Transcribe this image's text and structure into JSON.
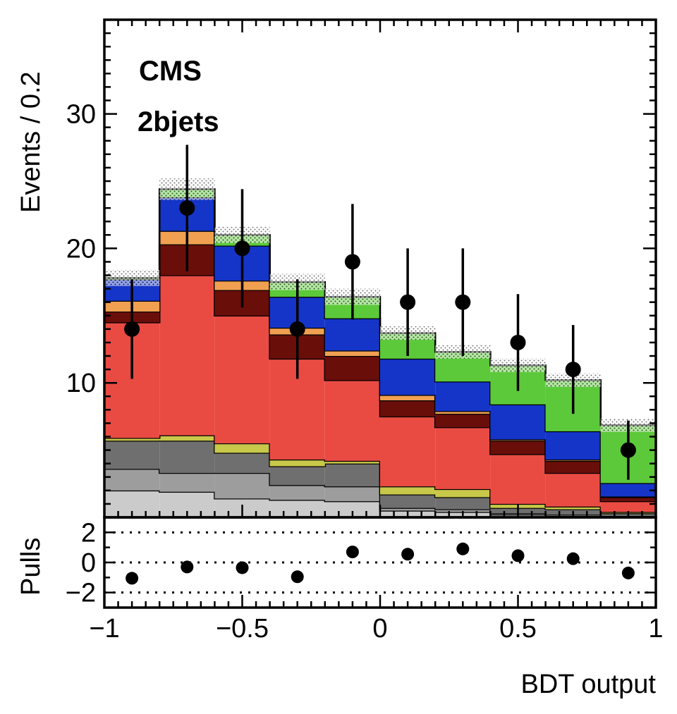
{
  "chart_data": [
    {
      "type": "bar",
      "subtype": "stacked-step-histogram",
      "panel": "main",
      "annotations": [
        "CMS",
        "2bjets"
      ],
      "ylabel": "Events / 0.2",
      "xlim": [
        -1,
        1
      ],
      "ylim": [
        0,
        37
      ],
      "bin_edges": [
        -1,
        -0.8,
        -0.6,
        -0.4,
        -0.2,
        0,
        0.2,
        0.4,
        0.6,
        0.8,
        1
      ],
      "y_ticks": [
        "10",
        "20",
        "30"
      ],
      "y_tick_values": [
        10,
        20,
        30
      ],
      "stack": [
        {
          "color": "#cbcbcb",
          "values": [
            2.0,
            1.9,
            1.4,
            1.3,
            1.2,
            0.5,
            0.4,
            0.2,
            0.1,
            0.05
          ]
        },
        {
          "color": "#9d9d9d",
          "values": [
            1.6,
            1.4,
            1.9,
            1.1,
            1.1,
            0.2,
            0.2,
            0.1,
            0.1,
            0.05
          ]
        },
        {
          "color": "#6f6f6f",
          "values": [
            2.1,
            2.4,
            1.5,
            1.4,
            1.7,
            1.0,
            0.9,
            0.4,
            0.4,
            0.2
          ]
        },
        {
          "color": "#c8c84a",
          "values": [
            0.2,
            0.4,
            0.7,
            0.5,
            0.2,
            0.6,
            0.6,
            0.3,
            0.2,
            0.1
          ]
        },
        {
          "color": "#e94b43",
          "values": [
            8.6,
            11.9,
            9.5,
            7.5,
            6.0,
            5.2,
            4.6,
            3.7,
            2.5,
            0.8
          ]
        },
        {
          "color": "#6a0e0a",
          "values": [
            0.8,
            2.3,
            1.9,
            1.8,
            1.8,
            1.2,
            1.0,
            1.0,
            0.9,
            0.3
          ]
        },
        {
          "color": "#f0a050",
          "values": [
            0.8,
            1.0,
            0.7,
            0.5,
            0.4,
            0.4,
            0.2,
            0.1,
            0.1,
            0.05
          ]
        },
        {
          "color": "#1535c9",
          "values": [
            1.6,
            2.5,
            2.6,
            2.3,
            2.4,
            2.7,
            2.2,
            2.6,
            2.1,
            1.0
          ]
        },
        {
          "color": "#5cc93a",
          "values": [
            0.1,
            0.6,
            0.8,
            1.1,
            1.6,
            1.9,
            2.2,
            2.9,
            3.8,
            4.3
          ]
        }
      ],
      "total_uncertainty": [
        0.6,
        0.8,
        0.6,
        0.6,
        0.6,
        0.5,
        0.5,
        0.5,
        0.5,
        0.5
      ],
      "data_points": {
        "x": [
          -0.9,
          -0.7,
          -0.5,
          -0.3,
          -0.1,
          0.1,
          0.3,
          0.5,
          0.7,
          0.9
        ],
        "y": [
          14,
          23,
          20,
          14,
          19,
          16,
          16,
          13,
          11,
          5
        ],
        "err_low": [
          3.7,
          4.7,
          4.4,
          3.7,
          4.3,
          4.0,
          4.0,
          3.6,
          3.3,
          2.2
        ],
        "err_high": [
          3.7,
          4.7,
          4.4,
          3.7,
          4.3,
          4.0,
          4.0,
          3.6,
          3.3,
          2.2
        ]
      }
    },
    {
      "type": "scatter",
      "panel": "ratio",
      "ylabel": "Pulls",
      "xlabel": "BDT output",
      "xlim": [
        -1,
        1
      ],
      "ylim": [
        -3,
        3
      ],
      "x_ticks": [
        "−1",
        "−0.5",
        "0",
        "0.5",
        "1"
      ],
      "x_tick_values": [
        -1,
        -0.5,
        0,
        0.5,
        1
      ],
      "y_ticks": [
        "−2",
        "0",
        "2"
      ],
      "y_tick_values": [
        -2,
        0,
        2
      ],
      "reference_lines": [
        -2,
        0,
        2
      ],
      "x": [
        -0.9,
        -0.7,
        -0.5,
        -0.3,
        -0.1,
        0.1,
        0.3,
        0.5,
        0.7,
        0.9
      ],
      "y": [
        -1.05,
        -0.3,
        -0.35,
        -0.95,
        0.7,
        0.55,
        0.9,
        0.45,
        0.25,
        -0.7
      ]
    }
  ]
}
